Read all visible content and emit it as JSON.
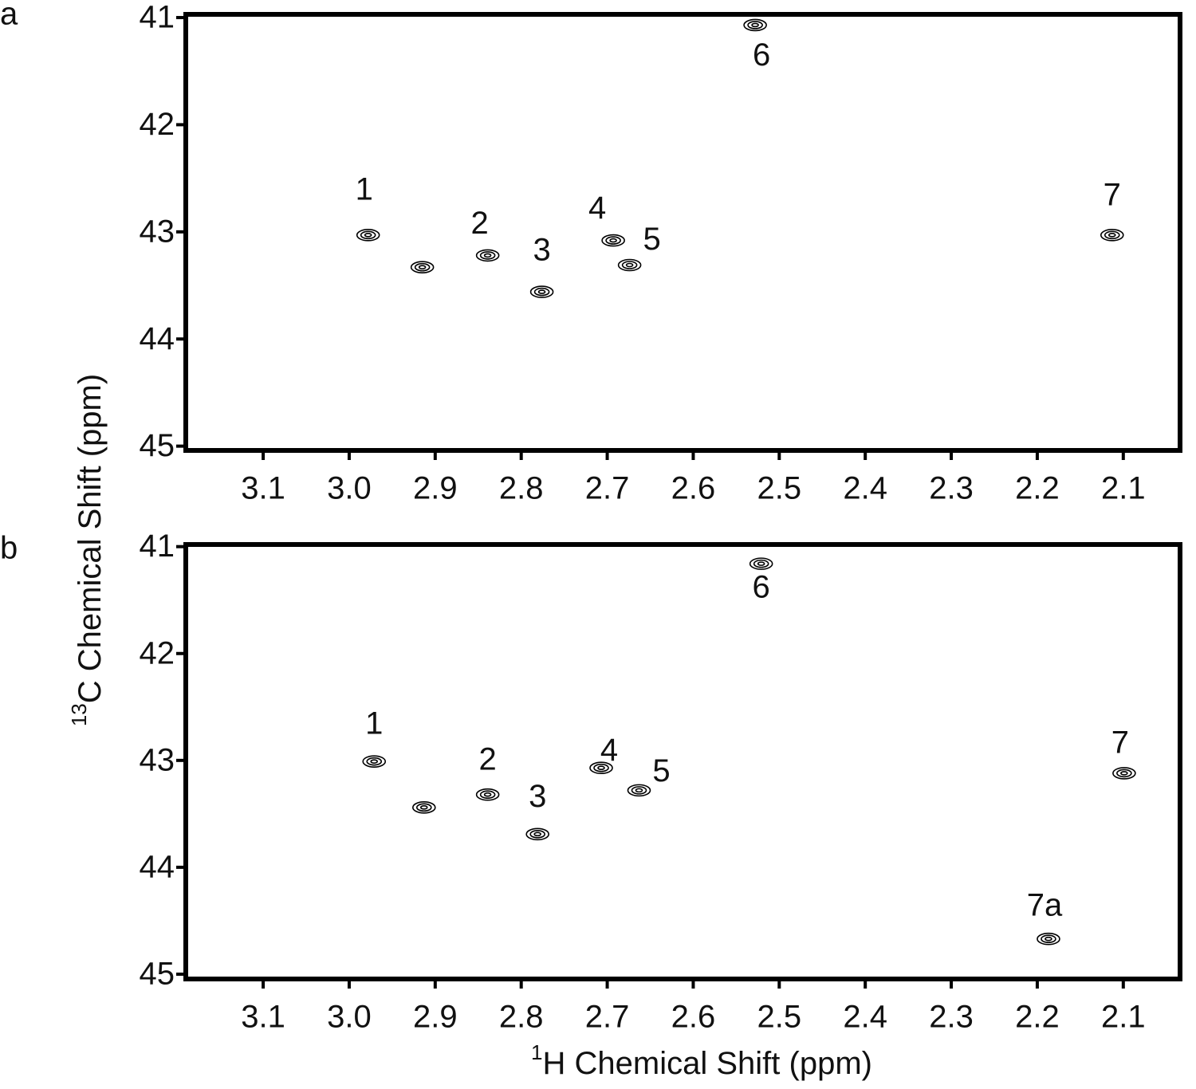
{
  "chart_data": [
    {
      "type": "scatter",
      "panel": "a",
      "ylabel_sup": "13",
      "ylabel": "C Chemical Shift (ppm)",
      "xlim": [
        3.19,
        2.034
      ],
      "ylim": [
        45.04,
        40.97
      ],
      "xticks": [
        3.1,
        {
          "value": 3,
          "label": "3.0"
        },
        2.9,
        2.8,
        2.7,
        2.6,
        2.5,
        2.4,
        2.3,
        2.2,
        2.1
      ],
      "yticks": [
        41,
        42,
        43,
        44,
        45
      ],
      "labels": [
        "1",
        null,
        "2",
        "3",
        "4",
        "5",
        "6",
        "7"
      ],
      "x": [
        2.978,
        2.915,
        2.839,
        2.776,
        2.693,
        2.674,
        2.528,
        2.113
      ],
      "values": [
        43.03,
        43.33,
        43.22,
        43.56,
        43.08,
        43.31,
        41.07,
        43.03
      ]
    },
    {
      "type": "scatter",
      "panel": "b",
      "xlabel_sup": "1",
      "xlabel": "H Chemical Shift (ppm)",
      "xlim": [
        3.19,
        2.034
      ],
      "ylim": [
        45.045,
        40.98
      ],
      "xticks": [
        3.1,
        {
          "value": 3,
          "label": "3.0"
        },
        2.9,
        2.8,
        2.7,
        2.6,
        2.5,
        2.4,
        2.3,
        2.2,
        2.1
      ],
      "yticks": [
        41,
        42,
        43,
        44,
        45
      ],
      "labels": [
        "1",
        null,
        "2",
        "3",
        "4",
        "5",
        "6",
        "7",
        "7a"
      ],
      "x": [
        2.971,
        2.913,
        2.839,
        2.781,
        2.707,
        2.663,
        2.521,
        2.099,
        2.187
      ],
      "values": [
        43.01,
        43.44,
        43.32,
        43.69,
        43.07,
        43.28,
        41.16,
        43.12,
        44.67
      ]
    }
  ]
}
